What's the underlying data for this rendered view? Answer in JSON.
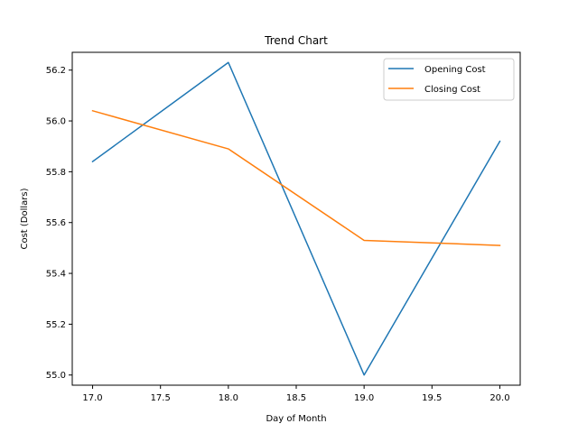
{
  "chart_data": {
    "type": "line",
    "title": "Trend Chart",
    "xlabel": "Day of Month",
    "ylabel": "Cost (Dollars)",
    "x": [
      17,
      18,
      19,
      20
    ],
    "xlim": [
      16.85,
      20.15
    ],
    "ylim": [
      54.96,
      56.27
    ],
    "xticks": [
      17.0,
      17.5,
      18.0,
      18.5,
      19.0,
      19.5,
      20.0
    ],
    "yticks": [
      55.0,
      55.2,
      55.4,
      55.6,
      55.8,
      56.0,
      56.2
    ],
    "grid": false,
    "legend_position": "top-right",
    "series": [
      {
        "name": "Opening Cost",
        "color": "#1f77b4",
        "values": [
          55.84,
          56.23,
          55.0,
          55.92
        ]
      },
      {
        "name": "Closing Cost",
        "color": "#ff7f0e",
        "values": [
          56.04,
          55.89,
          55.53,
          55.51
        ]
      }
    ]
  }
}
